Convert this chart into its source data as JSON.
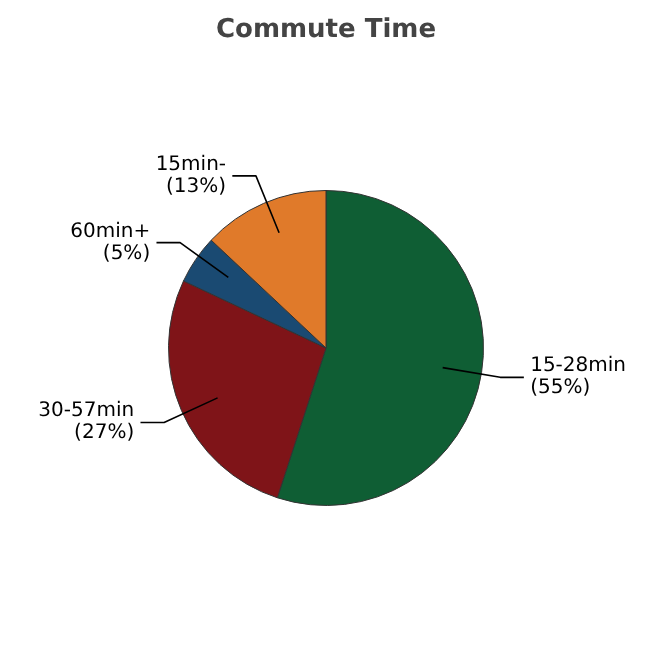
{
  "chart_data": {
    "type": "pie",
    "title": "Commute Time",
    "categories": [
      "15-28min",
      "30-57min",
      "60min+",
      "15min-"
    ],
    "values": [
      55,
      27,
      5,
      13
    ],
    "value_labels": [
      "(55%)",
      "(27%)",
      "(5%)",
      "(13%)"
    ],
    "colors": [
      "#0f5e34",
      "#7f1418",
      "#1a4a72",
      "#e07a2a"
    ]
  }
}
